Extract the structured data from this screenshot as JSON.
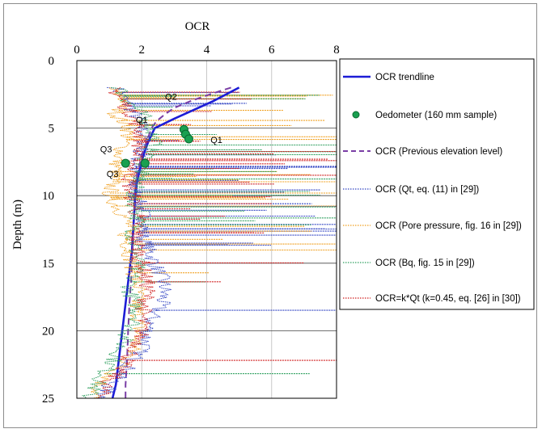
{
  "chart_data": {
    "type": "line",
    "title": "",
    "xlabel": "OCR",
    "ylabel": "Depth (m)",
    "x_axis_position": "top",
    "y_axis_inverted": true,
    "xlim": [
      0,
      8
    ],
    "ylim": [
      0,
      25
    ],
    "x_ticks": [
      "0",
      "2",
      "4",
      "6",
      "8"
    ],
    "y_ticks": [
      "0",
      "5",
      "10",
      "15",
      "20",
      "25"
    ],
    "x_tick_values": [
      0,
      2,
      4,
      6,
      8
    ],
    "y_tick_values": [
      0,
      5,
      10,
      15,
      20,
      25
    ],
    "grid": true,
    "legend_position": "right",
    "series": [
      {
        "name": "OCR trendline",
        "color": "#1c1cd6",
        "style": "solid",
        "points": [
          [
            5.0,
            2.0
          ],
          [
            4.2,
            3.0
          ],
          [
            3.0,
            4.3
          ],
          [
            2.4,
            5.0
          ],
          [
            2.2,
            6.0
          ],
          [
            2.05,
            7.0
          ],
          [
            1.95,
            8.0
          ],
          [
            1.85,
            9.0
          ],
          [
            1.8,
            10.0
          ],
          [
            1.75,
            12.0
          ],
          [
            1.7,
            14.0
          ],
          [
            1.6,
            16.0
          ],
          [
            1.5,
            18.0
          ],
          [
            1.4,
            20.0
          ],
          [
            1.3,
            22.0
          ],
          [
            1.2,
            24.0
          ],
          [
            1.1,
            25.0
          ]
        ]
      },
      {
        "name": "Oedometer (160 mm sample)",
        "color": "#1aa050",
        "style": "marker",
        "points": [
          [
            3.3,
            5.1
          ],
          [
            3.35,
            5.45
          ],
          [
            3.45,
            5.8
          ],
          [
            2.1,
            7.6
          ],
          [
            1.5,
            7.6
          ]
        ]
      },
      {
        "name": "OCR (Previous elevation level)",
        "color": "#7a3ea5",
        "style": "dashed",
        "points": [
          [
            4.75,
            2.0
          ],
          [
            4.1,
            2.5
          ],
          [
            3.5,
            3.0
          ],
          [
            3.0,
            3.5
          ],
          [
            2.7,
            4.0
          ],
          [
            2.45,
            4.5
          ],
          [
            2.3,
            5.0
          ],
          [
            2.15,
            6.0
          ],
          [
            2.0,
            7.0
          ],
          [
            1.9,
            8.0
          ],
          [
            1.82,
            9.0
          ],
          [
            1.78,
            10.0
          ],
          [
            1.75,
            12.0
          ],
          [
            1.72,
            14.0
          ],
          [
            1.68,
            16.0
          ],
          [
            1.62,
            18.0
          ],
          [
            1.58,
            20.0
          ],
          [
            1.55,
            22.0
          ],
          [
            1.5,
            24.0
          ],
          [
            1.5,
            25.0
          ]
        ]
      },
      {
        "name": "OCR (Qt, eq. (11) in [29])",
        "color": "#3346c4",
        "style": "dotted",
        "points": [
          [
            1.2,
            2.0
          ],
          [
            1.5,
            3.0
          ],
          [
            1.8,
            4.0
          ],
          [
            2.0,
            5.0
          ],
          [
            2.1,
            6.0
          ],
          [
            1.9,
            7.0
          ],
          [
            1.8,
            8.0
          ],
          [
            1.7,
            9.0
          ],
          [
            1.8,
            10.0
          ],
          [
            2.0,
            11.0
          ],
          [
            2.1,
            12.0
          ],
          [
            2.0,
            13.0
          ],
          [
            2.2,
            14.0
          ],
          [
            2.4,
            15.0
          ],
          [
            2.6,
            16.0
          ],
          [
            2.7,
            17.0
          ],
          [
            2.6,
            18.0
          ],
          [
            2.3,
            19.0
          ],
          [
            2.2,
            20.0
          ],
          [
            2.1,
            21.0
          ],
          [
            1.8,
            22.0
          ],
          [
            1.5,
            23.0
          ],
          [
            1.0,
            24.0
          ],
          [
            0.8,
            25.0
          ]
        ]
      },
      {
        "name": "OCR (Pore pressure, fig. 16 in [29])",
        "color": "#f0a020",
        "style": "dotted",
        "points": [
          [
            1.0,
            2.0
          ],
          [
            1.5,
            3.0
          ],
          [
            1.2,
            4.0
          ],
          [
            1.6,
            5.0
          ],
          [
            1.5,
            6.0
          ],
          [
            1.3,
            7.0
          ],
          [
            1.2,
            8.0
          ],
          [
            1.1,
            9.0
          ],
          [
            1.0,
            10.0
          ],
          [
            1.3,
            11.0
          ],
          [
            1.6,
            12.0
          ],
          [
            1.5,
            13.0
          ],
          [
            1.6,
            14.0
          ],
          [
            1.7,
            15.0
          ],
          [
            1.8,
            16.0
          ],
          [
            1.9,
            17.0
          ],
          [
            1.8,
            18.0
          ],
          [
            1.9,
            19.0
          ],
          [
            1.9,
            20.0
          ],
          [
            1.8,
            21.0
          ],
          [
            1.6,
            22.0
          ],
          [
            1.2,
            23.0
          ],
          [
            0.7,
            24.0
          ],
          [
            0.5,
            25.0
          ]
        ]
      },
      {
        "name": "OCR (Bq, fig. 15 in [29])",
        "color": "#30a060",
        "style": "dotted",
        "points": [
          [
            1.3,
            2.0
          ],
          [
            1.6,
            3.0
          ],
          [
            2.0,
            4.0
          ],
          [
            2.3,
            5.0
          ],
          [
            2.4,
            6.0
          ],
          [
            2.2,
            7.0
          ],
          [
            2.0,
            8.0
          ],
          [
            1.9,
            9.0
          ],
          [
            1.7,
            10.0
          ],
          [
            1.8,
            11.0
          ],
          [
            1.9,
            12.0
          ],
          [
            1.7,
            13.0
          ],
          [
            1.8,
            14.0
          ],
          [
            1.9,
            15.0
          ],
          [
            1.7,
            16.0
          ],
          [
            1.6,
            17.0
          ],
          [
            1.8,
            18.0
          ],
          [
            1.9,
            19.0
          ],
          [
            1.6,
            20.0
          ],
          [
            1.4,
            21.0
          ],
          [
            1.2,
            22.0
          ],
          [
            0.9,
            23.0
          ],
          [
            0.6,
            24.0
          ],
          [
            0.3,
            25.0
          ]
        ]
      },
      {
        "name": "OCR=k*Qt (k=0.45, eq. [26] in [30])",
        "color": "#d02020",
        "style": "dotted",
        "points": [
          [
            1.1,
            2.0
          ],
          [
            1.4,
            3.0
          ],
          [
            1.7,
            4.0
          ],
          [
            1.9,
            5.0
          ],
          [
            2.0,
            6.0
          ],
          [
            1.8,
            7.0
          ],
          [
            1.7,
            8.0
          ],
          [
            1.6,
            9.0
          ],
          [
            1.7,
            10.0
          ],
          [
            1.8,
            11.0
          ],
          [
            1.9,
            12.0
          ],
          [
            1.8,
            13.0
          ],
          [
            1.9,
            14.0
          ],
          [
            2.0,
            15.0
          ],
          [
            2.1,
            16.0
          ],
          [
            2.2,
            17.0
          ],
          [
            2.1,
            18.0
          ],
          [
            2.0,
            19.0
          ],
          [
            2.0,
            20.0
          ],
          [
            1.9,
            21.0
          ],
          [
            1.6,
            22.0
          ],
          [
            1.3,
            23.0
          ],
          [
            0.9,
            24.0
          ],
          [
            0.7,
            25.0
          ]
        ]
      }
    ],
    "annotations": [
      {
        "text": "Q2",
        "x": 2.9,
        "y": 2.9
      },
      {
        "text": "Q1",
        "x": 2.0,
        "y": 4.6
      },
      {
        "text": "Q1",
        "x": 4.3,
        "y": 6.1
      },
      {
        "text": "Q3",
        "x": 0.9,
        "y": 6.8
      },
      {
        "text": "Q3",
        "x": 1.1,
        "y": 8.6
      }
    ]
  }
}
